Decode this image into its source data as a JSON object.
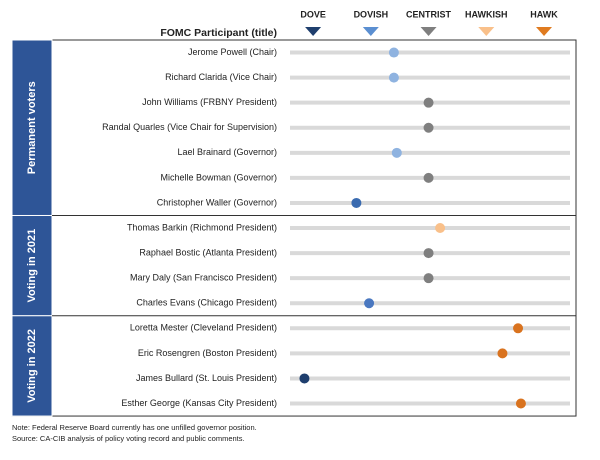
{
  "chart_data": {
    "type": "dot",
    "y_axis_label": "FOMC Participant (title)",
    "xlim": [
      -2.4,
      2.45
    ],
    "xticks": [
      {
        "value": -2,
        "label": "DOVE"
      },
      {
        "value": -1,
        "label": "DOVISH"
      },
      {
        "value": 0,
        "label": "CENTRIST"
      },
      {
        "value": 1,
        "label": "HAWKISH"
      },
      {
        "value": 2,
        "label": "HAWK"
      }
    ],
    "tick_colors": [
      "#1f3f6e",
      "#5b8fd1",
      "#7f7f7f",
      "#f9c08a",
      "#e07b20"
    ],
    "groups": [
      {
        "name": "Permanent voters",
        "categories": [
          "Jerome Powell (Chair)",
          "Richard Clarida (Vice Chair)",
          "John Williams (FRBNY President)",
          "Randal Quarles (Vice Chair for Supervision)",
          "Lael Brainard (Governor)",
          "Michelle Bowman (Governor)",
          "Christopher Waller (Governor)"
        ],
        "values": [
          -0.6,
          -0.6,
          0,
          0,
          -0.55,
          0,
          -1.25
        ],
        "colors": [
          "#8fb3e0",
          "#8fb3e0",
          "#7f7f7f",
          "#7f7f7f",
          "#8fb3e0",
          "#7f7f7f",
          "#3a6bb0"
        ]
      },
      {
        "name": "Voting in 2021",
        "categories": [
          "Thomas Barkin (Richmond President)",
          "Raphael Bostic (Atlanta President)",
          "Mary Daly (San Francisco President)",
          "Charles Evans (Chicago President)"
        ],
        "values": [
          0.2,
          0,
          0,
          -1.03
        ],
        "colors": [
          "#f9c08a",
          "#7f7f7f",
          "#7f7f7f",
          "#4a78c0"
        ]
      },
      {
        "name": "Voting in 2022",
        "categories": [
          "Loretta Mester (Cleveland President)",
          "Eric Rosengren (Boston President)",
          "James Bullard (St. Louis President)",
          "Esther George (Kansas City President)"
        ],
        "values": [
          1.55,
          1.28,
          -2.15,
          1.6
        ],
        "colors": [
          "#d9731f",
          "#d9731f",
          "#1f3f6e",
          "#d9731f"
        ]
      }
    ],
    "notes": [
      "Note: Federal Reserve Board currently has one unfilled  governor position.",
      "Source: CA-CIB analysis of policy voting record and public comments."
    ]
  }
}
